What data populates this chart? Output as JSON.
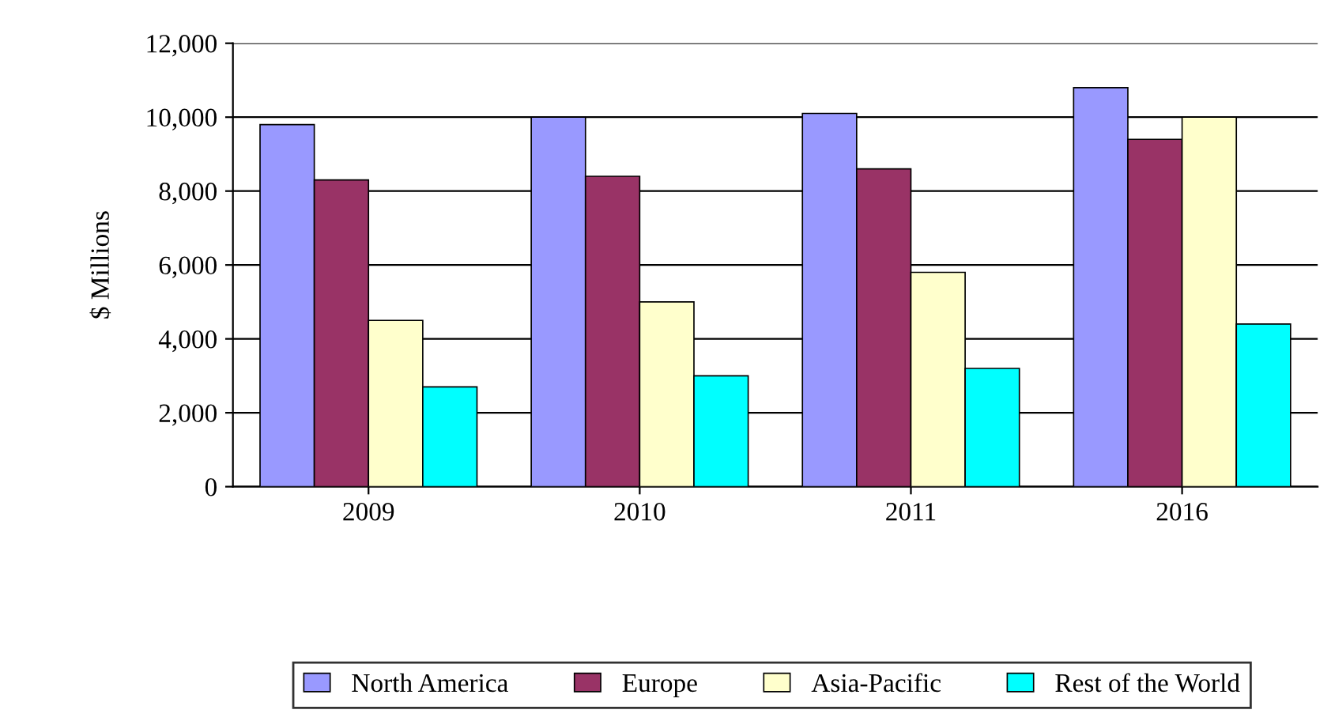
{
  "chart_data": {
    "type": "bar",
    "ylabel": "$ Millions",
    "categories": [
      "2009",
      "2010",
      "2011",
      "2016"
    ],
    "series": [
      {
        "name": "North America",
        "color": "#9999ff",
        "values": [
          9800,
          10000,
          10100,
          10800
        ]
      },
      {
        "name": "Europe",
        "color": "#993366",
        "values": [
          8300,
          8400,
          8600,
          9400
        ]
      },
      {
        "name": "Asia-Pacific",
        "color": "#ffffcc",
        "values": [
          4500,
          5000,
          5800,
          10000
        ]
      },
      {
        "name": "Rest of the World",
        "color": "#00ffff",
        "values": [
          2700,
          3000,
          3200,
          4400
        ]
      }
    ],
    "ylim": [
      0,
      12000
    ],
    "yticks": [
      {
        "value": 0,
        "label": "0"
      },
      {
        "value": 2000,
        "label": "2,000"
      },
      {
        "value": 4000,
        "label": "4,000"
      },
      {
        "value": 6000,
        "label": "6,000"
      },
      {
        "value": 8000,
        "label": "8,000"
      },
      {
        "value": 10000,
        "label": "10,000"
      },
      {
        "value": 12000,
        "label": "12,000"
      }
    ],
    "grid": "y",
    "legend": "bottom"
  }
}
